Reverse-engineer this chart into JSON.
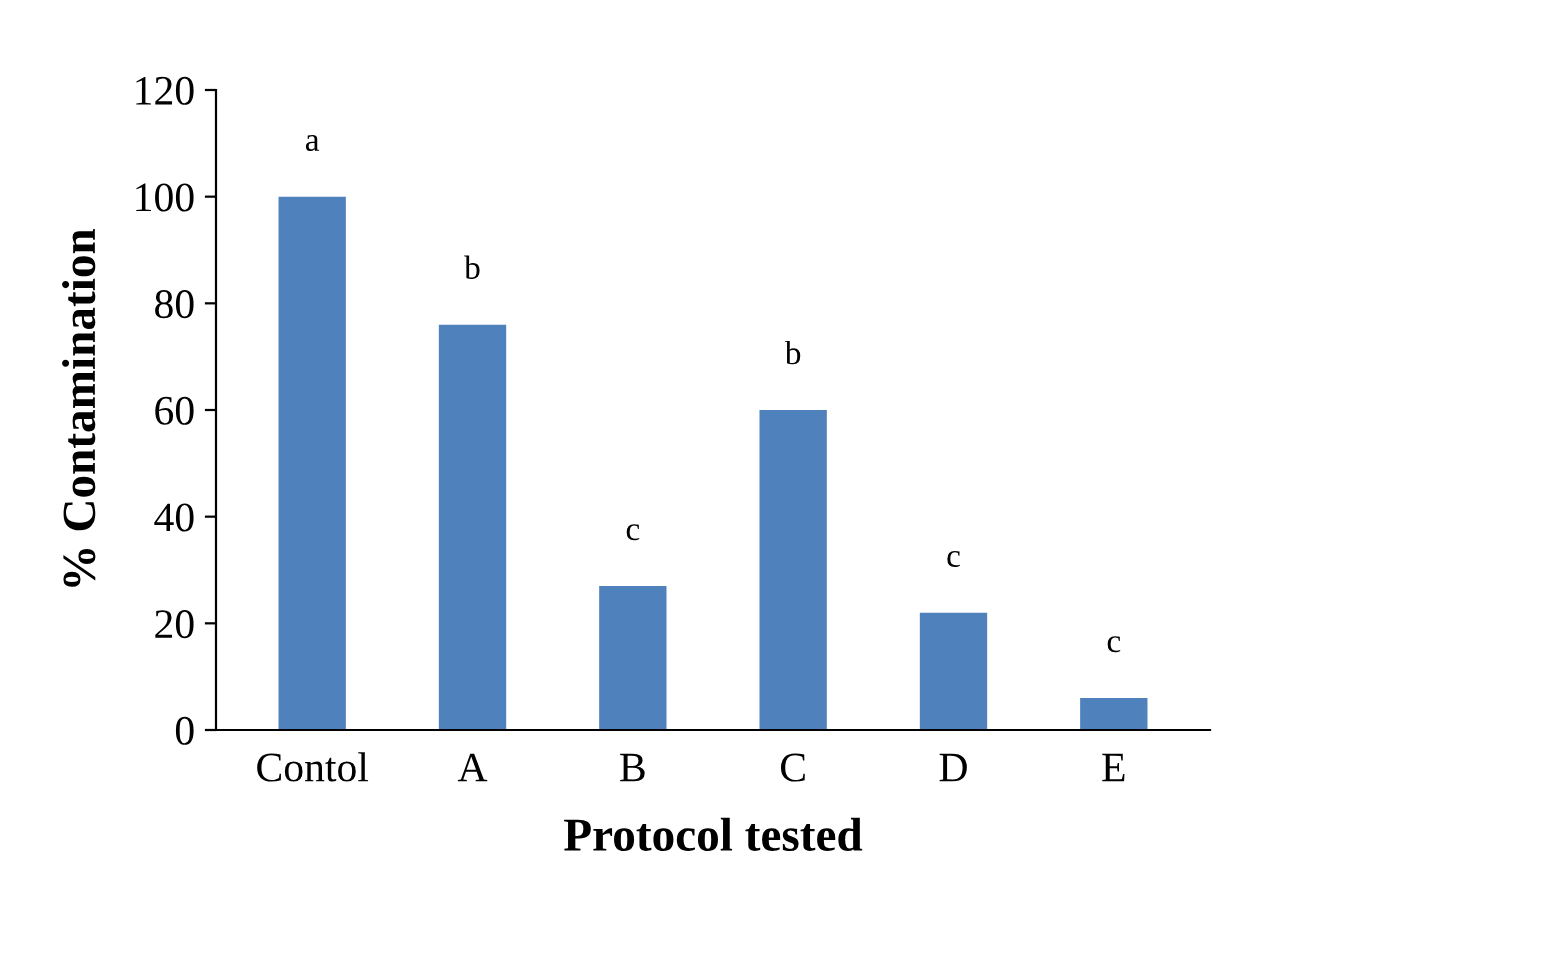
{
  "chart_data": {
    "type": "bar",
    "xlabel": "Protocol tested",
    "ylabel": "% Contamination",
    "categories": [
      "Contol",
      "A",
      "B",
      "C",
      "D",
      "E"
    ],
    "values": [
      100,
      76,
      27,
      60,
      22,
      6
    ],
    "color": "#4f81bd",
    "ylim": [
      0,
      120
    ],
    "yticks": [
      0,
      20,
      40,
      60,
      80,
      100,
      120
    ],
    "grid": false,
    "annotations": [
      {
        "text": "a",
        "x": "Contol",
        "y": 100
      },
      {
        "text": "b",
        "x": "A",
        "y": 76
      },
      {
        "text": "c",
        "x": "B",
        "y": 27
      },
      {
        "text": "b",
        "x": "C",
        "y": 60
      },
      {
        "text": "c",
        "x": "D",
        "y": 22
      },
      {
        "text": "c",
        "x": "E",
        "y": 6
      }
    ]
  }
}
